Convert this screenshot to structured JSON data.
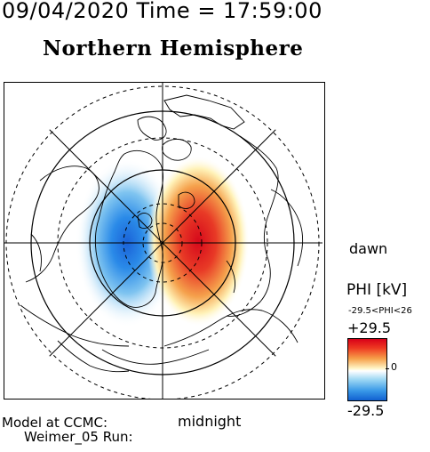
{
  "header": {
    "datetime": "09/04/2020 Time = 17:59:00"
  },
  "map": {
    "title": "Northern Hemisphere",
    "label_dawn": "dawn",
    "label_midnight": "midnight"
  },
  "colorbar": {
    "title": "PHI [kV]",
    "range_text": "-29.5<PHI<26",
    "max_label": "+29.5",
    "zero_label": "0",
    "min_label": "-29.5",
    "colors": {
      "high": "#d80018",
      "mid": "#ffffff",
      "low": "#1060d0"
    }
  },
  "footer": {
    "model_text": "Model at CCMC:",
    "run_text": "Weimer_05 Run:"
  }
}
